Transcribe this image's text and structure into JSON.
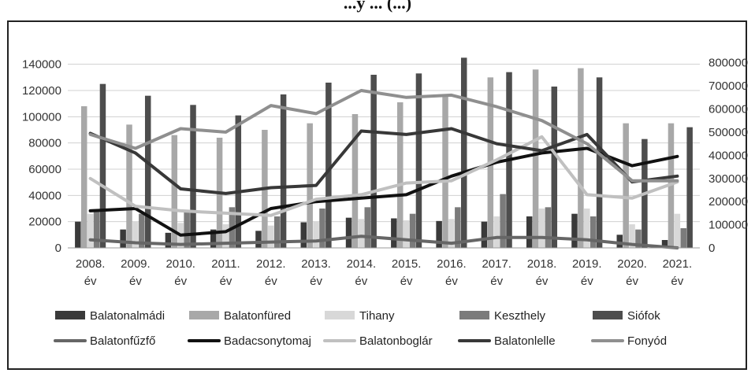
{
  "chart_data": {
    "type": "bar",
    "title": "...y ... (...)",
    "categories": [
      "2008.\név",
      "2009.\név",
      "2010.\név",
      "2011.\név",
      "2012.\név",
      "2013.\név",
      "2014.\név",
      "2015.\név",
      "2016.\név",
      "2017.\név",
      "2018.\név",
      "2019.\név",
      "2020.\név",
      "2021.\név"
    ],
    "y_left": {
      "ylim": [
        0,
        150000
      ],
      "ticks": [
        0,
        20000,
        40000,
        60000,
        80000,
        100000,
        120000,
        140000
      ]
    },
    "y_right": {
      "ylim": [
        0,
        850000
      ],
      "ticks": [
        0,
        100000,
        200000,
        300000,
        400000,
        500000,
        600000,
        700000,
        800000
      ]
    },
    "grid": true,
    "legend_position": "bottom",
    "bar_series": [
      {
        "name": "Balatonalmádi",
        "color": "#3a3a3a",
        "axis": "left",
        "values": [
          20000,
          14000,
          11500,
          14000,
          13000,
          19500,
          23000,
          22500,
          20500,
          20000,
          24000,
          26000,
          10000,
          6000
        ]
      },
      {
        "name": "Balatonfüred",
        "color": "#a8a8a8",
        "axis": "left",
        "values": [
          108000,
          94000,
          86000,
          84000,
          90000,
          95000,
          102000,
          111000,
          116000,
          130000,
          136000,
          137000,
          95000,
          95000
        ]
      },
      {
        "name": "Tihany",
        "color": "#d8d8d8",
        "axis": "left",
        "values": [
          26000,
          20000,
          19000,
          18000,
          17000,
          20000,
          22000,
          21000,
          22000,
          24000,
          30000,
          30000,
          18000,
          26000
        ]
      },
      {
        "name": "Keszthely",
        "color": "#7b7b7b",
        "axis": "left",
        "values": [
          29000,
          26000,
          28000,
          31000,
          24000,
          30000,
          31000,
          26000,
          31000,
          41000,
          31000,
          24000,
          14000,
          15000
        ]
      },
      {
        "name": "Siófok",
        "color": "#4d4d4d",
        "axis": "left",
        "values": [
          125000,
          116000,
          109000,
          101000,
          117000,
          126000,
          132000,
          133000,
          145000,
          134000,
          123000,
          130000,
          83000,
          92000
        ]
      }
    ],
    "line_series": [
      {
        "name": "Balatonfűzfő",
        "color": "#666666",
        "axis": "right",
        "values": [
          35000,
          22000,
          15000,
          20000,
          25000,
          30000,
          50000,
          35000,
          20000,
          45000,
          45000,
          35000,
          15000,
          0
        ]
      },
      {
        "name": "Badacsonytomaj",
        "color": "#111111",
        "axis": "right",
        "values": [
          160000,
          170000,
          55000,
          70000,
          170000,
          200000,
          215000,
          230000,
          310000,
          370000,
          410000,
          430000,
          355000,
          395000
        ]
      },
      {
        "name": "Balatonboglár",
        "color": "#c0c0c0",
        "axis": "right",
        "values": [
          300000,
          180000,
          160000,
          150000,
          140000,
          210000,
          230000,
          280000,
          290000,
          380000,
          480000,
          230000,
          215000,
          285000
        ]
      },
      {
        "name": "Balatonlelle",
        "color": "#383838",
        "axis": "right",
        "values": [
          495000,
          410000,
          255000,
          235000,
          260000,
          270000,
          505000,
          490000,
          515000,
          450000,
          420000,
          490000,
          285000,
          310000
        ]
      },
      {
        "name": "Fonyód",
        "color": "#8f8f8f",
        "axis": "right",
        "values": [
          490000,
          430000,
          515000,
          500000,
          615000,
          580000,
          680000,
          650000,
          660000,
          610000,
          550000,
          450000,
          290000,
          290000
        ]
      }
    ]
  }
}
